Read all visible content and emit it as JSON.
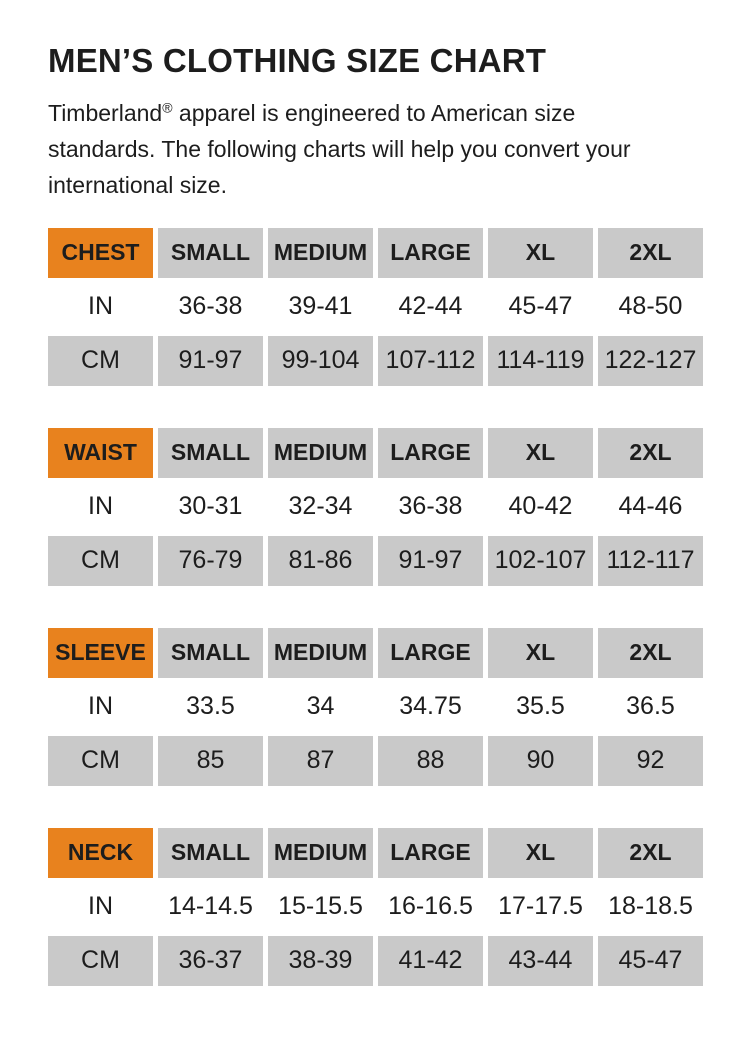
{
  "page": {
    "title": "MEN’S CLOTHING SIZE CHART",
    "intro": {
      "brand": "Timberland",
      "trademark": "®",
      "text": " apparel is engineered to American size standards. The following charts will help you convert your international size."
    }
  },
  "colors": {
    "accent_orange": "#E8821E",
    "cell_gray": "#C9C9C9",
    "text_color": "#1D1D1D"
  },
  "size_labels": [
    "SMALL",
    "MEDIUM",
    "LARGE",
    "XL",
    "2XL"
  ],
  "units": {
    "in": "IN",
    "cm": "CM"
  },
  "tables": [
    {
      "label": "CHEST",
      "in": [
        "36-38",
        "39-41",
        "42-44",
        "45-47",
        "48-50"
      ],
      "cm": [
        "91-97",
        "99-104",
        "107-112",
        "114-119",
        "122-127"
      ]
    },
    {
      "label": "WAIST",
      "in": [
        "30-31",
        "32-34",
        "36-38",
        "40-42",
        "44-46"
      ],
      "cm": [
        "76-79",
        "81-86",
        "91-97",
        "102-107",
        "112-117"
      ]
    },
    {
      "label": "SLEEVE",
      "in": [
        "33.5",
        "34",
        "34.75",
        "35.5",
        "36.5"
      ],
      "cm": [
        "85",
        "87",
        "88",
        "90",
        "92"
      ]
    },
    {
      "label": "NECK",
      "in": [
        "14-14.5",
        "15-15.5",
        "16-16.5",
        "17-17.5",
        "18-18.5"
      ],
      "cm": [
        "36-37",
        "38-39",
        "41-42",
        "43-44",
        "45-47"
      ]
    }
  ]
}
